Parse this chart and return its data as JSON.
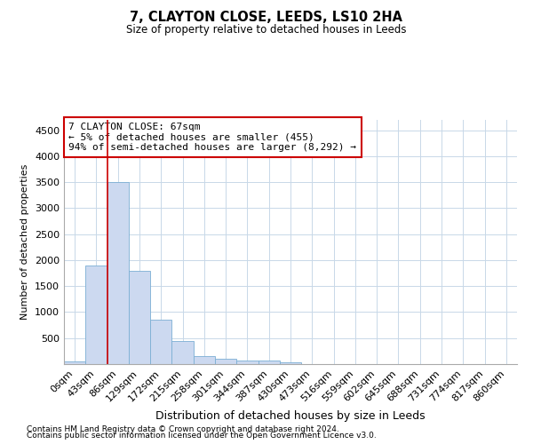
{
  "title": "7, CLAYTON CLOSE, LEEDS, LS10 2HA",
  "subtitle": "Size of property relative to detached houses in Leeds",
  "xlabel": "Distribution of detached houses by size in Leeds",
  "ylabel": "Number of detached properties",
  "annotation_title": "7 CLAYTON CLOSE: 67sqm",
  "annotation_line1": "← 5% of detached houses are smaller (455)",
  "annotation_line2": "94% of semi-detached houses are larger (8,292) →",
  "footer1": "Contains HM Land Registry data © Crown copyright and database right 2024.",
  "footer2": "Contains public sector information licensed under the Open Government Licence v3.0.",
  "bar_color": "#ccd9f0",
  "bar_edge_color": "#7bafd4",
  "vline_color": "#cc0000",
  "vline_x": 1.5,
  "annotation_box_color": "#cc0000",
  "ylim": [
    0,
    4700
  ],
  "yticks": [
    0,
    500,
    1000,
    1500,
    2000,
    2500,
    3000,
    3500,
    4000,
    4500
  ],
  "categories": [
    "0sqm",
    "43sqm",
    "86sqm",
    "129sqm",
    "172sqm",
    "215sqm",
    "258sqm",
    "301sqm",
    "344sqm",
    "387sqm",
    "430sqm",
    "473sqm",
    "516sqm",
    "559sqm",
    "602sqm",
    "645sqm",
    "688sqm",
    "731sqm",
    "774sqm",
    "817sqm",
    "860sqm"
  ],
  "values": [
    50,
    1900,
    3500,
    1800,
    850,
    450,
    160,
    100,
    75,
    60,
    40,
    0,
    0,
    0,
    0,
    0,
    0,
    0,
    0,
    0,
    0
  ],
  "background_color": "#ffffff",
  "grid_color": "#c8d8e8"
}
